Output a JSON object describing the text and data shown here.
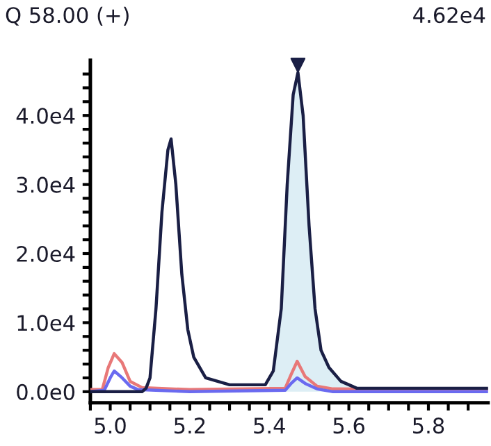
{
  "chart_data": {
    "type": "line",
    "title": "Q 58.00 (+)",
    "annotations": [
      "4.62e4"
    ],
    "series": [
      {
        "type": "area",
        "color": "#ddeef5",
        "x": [
          5.4,
          5.41,
          5.43,
          5.445,
          5.46,
          5.472,
          5.485,
          5.5,
          5.515,
          5.53,
          5.55,
          5.58,
          5.62
        ],
        "values": [
          2000,
          3000,
          12000,
          30000,
          43000,
          46200,
          40000,
          24000,
          12000,
          6000,
          3500,
          1500,
          500
        ]
      },
      {
        "color": "#e87878",
        "x": [
          4.95,
          4.98,
          4.995,
          5.01,
          5.03,
          5.05,
          5.08,
          5.2,
          5.44,
          5.455,
          5.47,
          5.49,
          5.52,
          5.56,
          5.95
        ],
        "values": [
          300,
          300,
          3500,
          5500,
          4200,
          1500,
          600,
          300,
          500,
          2500,
          4400,
          2200,
          800,
          400,
          300
        ]
      },
      {
        "color": "#6a6af0",
        "x": [
          4.95,
          4.985,
          5.0,
          5.01,
          5.03,
          5.05,
          5.07,
          5.2,
          5.44,
          5.455,
          5.47,
          5.49,
          5.52,
          5.56,
          5.95
        ],
        "values": [
          0,
          200,
          2000,
          3000,
          2000,
          800,
          300,
          0,
          200,
          1200,
          2000,
          1200,
          400,
          0,
          0
        ]
      },
      {
        "color": "#1a1f45",
        "x": [
          4.95,
          5.08,
          5.09,
          5.1,
          5.115,
          5.13,
          5.145,
          5.153,
          5.165,
          5.18,
          5.195,
          5.21,
          5.24,
          5.3,
          5.39,
          5.4,
          5.41,
          5.43,
          5.445,
          5.46,
          5.472,
          5.485,
          5.5,
          5.515,
          5.53,
          5.55,
          5.58,
          5.62,
          5.95
        ],
        "values": [
          0,
          0,
          500,
          2000,
          12000,
          26000,
          35000,
          36600,
          30000,
          17000,
          9000,
          5000,
          2000,
          1000,
          1000,
          2000,
          3000,
          12000,
          30000,
          43000,
          46200,
          40000,
          24000,
          12000,
          6000,
          3500,
          1500,
          500,
          500
        ]
      },
      {
        "type": "scatter",
        "color": "#1a1f45",
        "marker": "triangle",
        "x": [
          5.472
        ],
        "values": [
          47300
        ]
      }
    ],
    "xlim": [
      4.95,
      5.95
    ],
    "xticks": [
      {
        "value": 4.95,
        "label": null
      },
      {
        "value": 5.0,
        "label": "5.0"
      },
      {
        "value": 5.05,
        "label": null
      },
      {
        "value": 5.1,
        "label": null
      },
      {
        "value": 5.15,
        "label": null
      },
      {
        "value": 5.2,
        "label": "5.2"
      },
      {
        "value": 5.25,
        "label": null
      },
      {
        "value": 5.3,
        "label": null
      },
      {
        "value": 5.35,
        "label": null
      },
      {
        "value": 5.4,
        "label": "5.4"
      },
      {
        "value": 5.45,
        "label": null
      },
      {
        "value": 5.5,
        "label": null
      },
      {
        "value": 5.55,
        "label": null
      },
      {
        "value": 5.6,
        "label": "5.6"
      },
      {
        "value": 5.65,
        "label": null
      },
      {
        "value": 5.7,
        "label": null
      },
      {
        "value": 5.75,
        "label": null
      },
      {
        "value": 5.8,
        "label": "5.8"
      },
      {
        "value": 5.85,
        "label": null
      },
      {
        "value": 5.9,
        "label": null
      }
    ],
    "ylim": [
      -1600,
      48000
    ],
    "yticks": [
      {
        "value": 0,
        "label": "0.0e0"
      },
      {
        "value": 2000,
        "label": null
      },
      {
        "value": 4000,
        "label": null
      },
      {
        "value": 6000,
        "label": null
      },
      {
        "value": 8000,
        "label": null
      },
      {
        "value": 10000,
        "label": "1.0e4"
      },
      {
        "value": 12000,
        "label": null
      },
      {
        "value": 14000,
        "label": null
      },
      {
        "value": 16000,
        "label": null
      },
      {
        "value": 18000,
        "label": null
      },
      {
        "value": 20000,
        "label": "2.0e4"
      },
      {
        "value": 22000,
        "label": null
      },
      {
        "value": 24000,
        "label": null
      },
      {
        "value": 26000,
        "label": null
      },
      {
        "value": 28000,
        "label": null
      },
      {
        "value": 30000,
        "label": "3.0e4"
      },
      {
        "value": 32000,
        "label": null
      },
      {
        "value": 34000,
        "label": null
      },
      {
        "value": 36000,
        "label": null
      },
      {
        "value": 38000,
        "label": null
      },
      {
        "value": 40000,
        "label": "4.0e4"
      },
      {
        "value": 42000,
        "label": null
      },
      {
        "value": 44000,
        "label": null
      },
      {
        "value": 46000,
        "label": null
      }
    ],
    "grid": false,
    "legend": false
  }
}
